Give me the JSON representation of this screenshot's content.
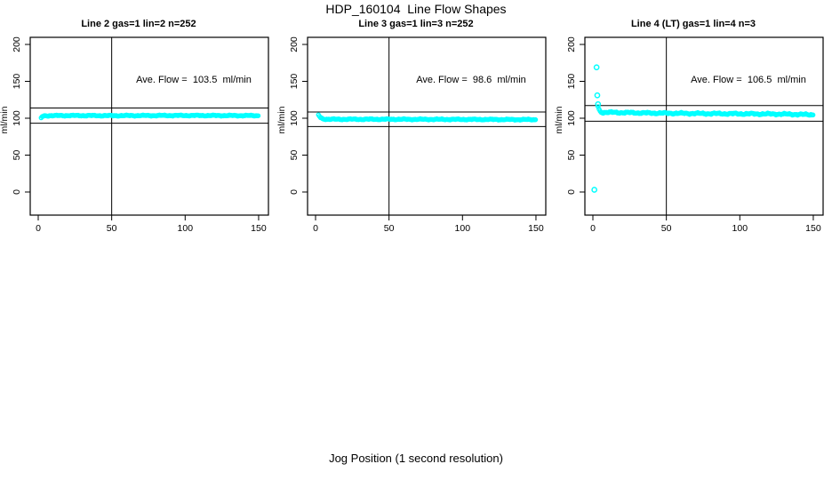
{
  "page": {
    "title": "HDP_160104  Line Flow Shapes",
    "xlabel": "Jog Position (1 second resolution)"
  },
  "axes": {
    "x_ticks": [
      0,
      50,
      100,
      150
    ],
    "y_ticks": [
      0,
      50,
      100,
      150,
      200
    ],
    "ylabel": "ml/min",
    "xlim": [
      -6,
      157
    ],
    "ylim": [
      -30,
      210
    ],
    "vline_x": 50,
    "grid": false,
    "legend": "none"
  },
  "colors": {
    "points": "#00FFFF",
    "axis": "#000000",
    "background": "#FFFFFF"
  },
  "chart_data": [
    {
      "type": "scatter",
      "title": "Line 2 gas=1 lin=2 n=252",
      "n": 252,
      "ave_flow": 103.5,
      "annotation": "Ave. Flow =  103.5  ml/min",
      "ref_lines": {
        "upper": 113.9,
        "lower": 93.2
      },
      "outliers": [],
      "band_profile": [
        [
          2,
          100.5
        ],
        [
          3,
          102.8
        ],
        [
          5,
          103.4
        ],
        [
          20,
          103.6
        ],
        [
          50,
          103.5
        ],
        [
          100,
          103.7
        ],
        [
          150,
          103.5
        ]
      ],
      "band_noise": 0.9
    },
    {
      "type": "scatter",
      "title": "Line 3 gas=1 lin=3 n=252",
      "n": 252,
      "ave_flow": 98.6,
      "annotation": "Ave. Flow =  98.6  ml/min",
      "ref_lines": {
        "upper": 108.5,
        "lower": 88.7
      },
      "outliers": [],
      "band_profile": [
        [
          2,
          104.5
        ],
        [
          3,
          101.5
        ],
        [
          5,
          99.0
        ],
        [
          10,
          98.6
        ],
        [
          50,
          98.6
        ],
        [
          100,
          98.4
        ],
        [
          150,
          98.1
        ]
      ],
      "band_noise": 0.9
    },
    {
      "type": "scatter",
      "title": "Line 4 (LT) gas=1 lin=4 n=3",
      "n": 3,
      "ave_flow": 106.5,
      "annotation": "Ave. Flow =  106.5  ml/min",
      "ref_lines": {
        "upper": 117.2,
        "lower": 95.9
      },
      "outliers": [
        [
          1,
          3
        ],
        [
          2.5,
          169
        ],
        [
          3,
          131
        ],
        [
          3.5,
          119
        ]
      ],
      "band_profile": [
        [
          3.5,
          116
        ],
        [
          4.5,
          110
        ],
        [
          6,
          108
        ],
        [
          15,
          107.8
        ],
        [
          40,
          107
        ],
        [
          70,
          106.4
        ],
        [
          100,
          106
        ],
        [
          125,
          105.7
        ],
        [
          150,
          104.8
        ]
      ],
      "band_noise": 1.4
    }
  ]
}
